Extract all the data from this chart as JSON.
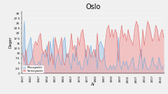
{
  "title": "Oslo",
  "xlabel": "År",
  "ylabel": "Dager",
  "ylim": [
    0,
    31
  ],
  "yticks": [
    0,
    2.5,
    5.0,
    7.5,
    10.0,
    12.5,
    15.0,
    17.5,
    20.0,
    22.5,
    25.0,
    27.5,
    30.0
  ],
  "years": [
    1937,
    1938,
    1939,
    1940,
    1941,
    1942,
    1943,
    1944,
    1945,
    1946,
    1947,
    1948,
    1949,
    1950,
    1951,
    1952,
    1953,
    1954,
    1955,
    1956,
    1957,
    1958,
    1959,
    1960,
    1961,
    1962,
    1963,
    1964,
    1965,
    1966,
    1967,
    1968,
    1969,
    1970,
    1971,
    1972,
    1973,
    1974,
    1975,
    1976,
    1977,
    1978,
    1979,
    1980,
    1981,
    1982,
    1983,
    1984,
    1985,
    1986,
    1987,
    1988,
    1989,
    1990,
    1991,
    1992,
    1993,
    1994,
    1995,
    1996,
    1997,
    1998,
    1999,
    2000,
    2001,
    2002,
    2003,
    2004,
    2005,
    2006,
    2007,
    2008,
    2009,
    2010,
    2011,
    2012,
    2013,
    2014,
    2015,
    2016,
    2017,
    2018,
    2019,
    2020,
    2021,
    2022,
    2023,
    2024
  ],
  "below_minus10": [
    8,
    26,
    2,
    12,
    15,
    18,
    10,
    6,
    4,
    4,
    6,
    4,
    10,
    10,
    8,
    14,
    4,
    16,
    8,
    18,
    2,
    8,
    10,
    6,
    4,
    16,
    18,
    8,
    10,
    6,
    2,
    10,
    6,
    14,
    4,
    6,
    2,
    2,
    6,
    12,
    4,
    10,
    14,
    8,
    8,
    12,
    2,
    14,
    16,
    14,
    12,
    4,
    2,
    2,
    4,
    2,
    4,
    2,
    4,
    18,
    4,
    2,
    6,
    4,
    6,
    2,
    4,
    6,
    8,
    2,
    2,
    2,
    8,
    12,
    2,
    8,
    4,
    2,
    2,
    4,
    8,
    4,
    4,
    2,
    8,
    4,
    2,
    4
  ],
  "above_zero": [
    10,
    6,
    12,
    4,
    4,
    6,
    8,
    14,
    16,
    14,
    18,
    20,
    12,
    10,
    12,
    8,
    16,
    6,
    10,
    4,
    18,
    14,
    10,
    14,
    18,
    6,
    4,
    10,
    8,
    12,
    20,
    12,
    14,
    8,
    18,
    14,
    20,
    22,
    16,
    8,
    14,
    12,
    8,
    10,
    12,
    8,
    20,
    8,
    6,
    6,
    8,
    16,
    22,
    24,
    18,
    22,
    18,
    22,
    20,
    6,
    18,
    24,
    18,
    20,
    16,
    22,
    18,
    16,
    14,
    22,
    26,
    24,
    16,
    8,
    22,
    14,
    20,
    26,
    24,
    20,
    16,
    18,
    24,
    22,
    16,
    20,
    22,
    18
  ],
  "color_blue": "#b8d4ec",
  "color_red": "#f2aaaa",
  "color_blue_line": "#7aacda",
  "color_red_line": "#e07070",
  "legend_blue": "Minusgrader",
  "legend_red": "Varmegrader",
  "background_color": "#f0f0f0",
  "xtick_years": [
    1937,
    1942,
    1947,
    1952,
    1957,
    1962,
    1967,
    1972,
    1977,
    1982,
    1987,
    1992,
    1997,
    2002,
    2007,
    2012,
    2017,
    2022
  ]
}
